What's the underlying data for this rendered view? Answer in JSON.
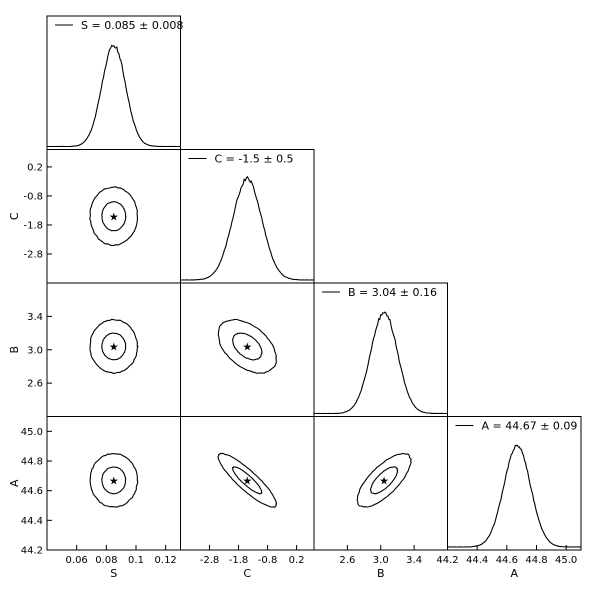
{
  "chart_data": {
    "type": "corner",
    "parameters": [
      {
        "name": "S",
        "axis_label": "S",
        "legend": "S = 0.085 ± 0.008",
        "mean": 0.085,
        "sigma": 0.008,
        "lim": [
          0.04,
          0.13
        ],
        "ticks": [
          0.06,
          0.08,
          0.1,
          0.12
        ],
        "tick_labels": [
          "0.06",
          "0.08",
          "0.1",
          "0.12"
        ]
      },
      {
        "name": "C",
        "axis_label": "C",
        "legend": "C = -1.5 ± 0.5",
        "mean": -1.5,
        "sigma": 0.5,
        "lim": [
          -3.8,
          0.8
        ],
        "ticks": [
          -2.8,
          -1.8,
          -0.8,
          0.2
        ],
        "tick_labels": [
          "-2.8",
          "-1.8",
          "-0.8",
          "0.2"
        ]
      },
      {
        "name": "B",
        "axis_label": "B",
        "legend": "B = 3.04 ± 0.16",
        "mean": 3.04,
        "sigma": 0.16,
        "lim": [
          2.2,
          3.8
        ],
        "ticks": [
          2.6,
          3.0,
          3.4
        ],
        "tick_labels": [
          "2.6",
          "3.0",
          "3.4"
        ]
      },
      {
        "name": "A",
        "axis_label": "A",
        "legend": "A = 44.67 ± 0.09",
        "mean": 44.67,
        "sigma": 0.09,
        "lim": [
          44.2,
          45.1
        ],
        "ticks": [
          44.2,
          44.4,
          44.6,
          44.8,
          45.0
        ],
        "tick_labels": [
          "44.2",
          "44.4",
          "44.6",
          "44.8",
          "45.0"
        ]
      }
    ],
    "correlations": [
      {
        "x": "S",
        "y": "C",
        "rho": 0.0
      },
      {
        "x": "S",
        "y": "B",
        "rho": 0.0
      },
      {
        "x": "S",
        "y": "A",
        "rho": 0.0
      },
      {
        "x": "C",
        "y": "B",
        "rho": -0.45
      },
      {
        "x": "C",
        "y": "A",
        "rho": -0.88
      },
      {
        "x": "B",
        "y": "A",
        "rho": 0.72
      }
    ],
    "contour_levels_sigma": [
      1,
      2
    ],
    "best_fit_marker": "star"
  }
}
